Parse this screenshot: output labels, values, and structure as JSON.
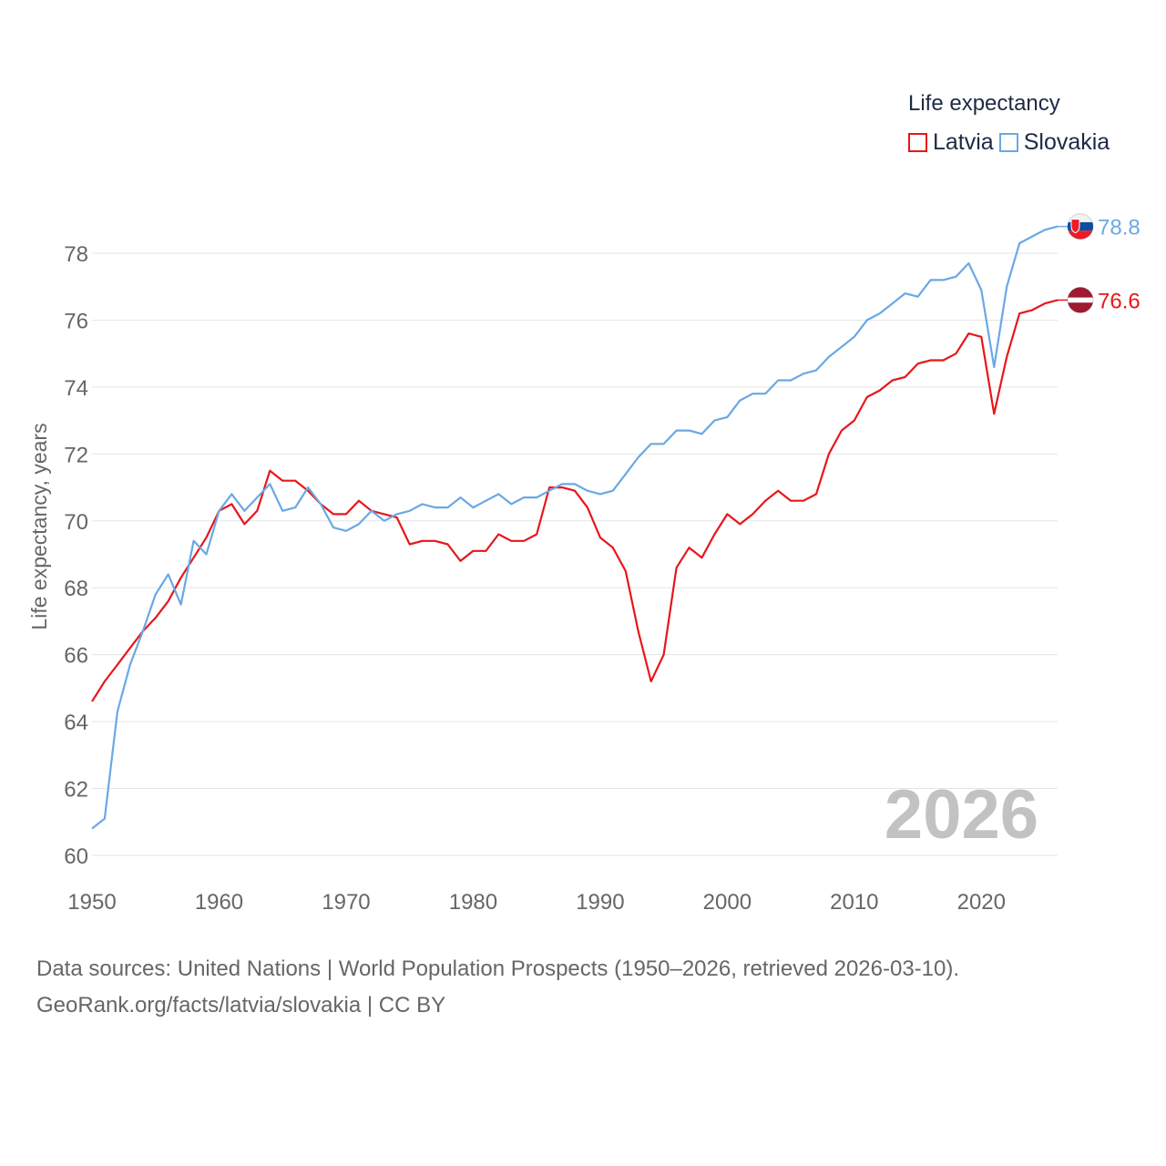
{
  "colors": {
    "latvia": "#e8161b",
    "slovakia": "#6aa8e6",
    "grid": "#e5e5e5",
    "axis_text": "#666666",
    "watermark": "#c2c2c2"
  },
  "legend": {
    "title": "Life expectancy",
    "items": [
      {
        "label": "Latvia",
        "color": "#e8161b"
      },
      {
        "label": "Slovakia",
        "color": "#6aa8e6"
      }
    ]
  },
  "source": {
    "line1": "Data sources: United Nations | World Population Prospects (1950–2026, retrieved 2026-03-10).",
    "line2": "GeoRank.org/facts/latvia/slovakia | CC BY"
  },
  "chart_data": {
    "type": "line",
    "title": "Life expectancy",
    "xlabel": "",
    "ylabel": "Life expectancy, years",
    "xlim": [
      1950,
      2026
    ],
    "ylim": [
      60,
      79.2
    ],
    "x_ticks": [
      "1950",
      "1960",
      "1970",
      "1980",
      "1990",
      "2000",
      "2010",
      "2020"
    ],
    "y_ticks": [
      "60",
      "62",
      "64",
      "66",
      "68",
      "70",
      "72",
      "74",
      "76",
      "78"
    ],
    "year_watermark": "2026",
    "grid": true,
    "legend_position": "top-right",
    "x": [
      1950,
      1951,
      1952,
      1953,
      1954,
      1955,
      1956,
      1957,
      1958,
      1959,
      1960,
      1961,
      1962,
      1963,
      1964,
      1965,
      1966,
      1967,
      1968,
      1969,
      1970,
      1971,
      1972,
      1973,
      1974,
      1975,
      1976,
      1977,
      1978,
      1979,
      1980,
      1981,
      1982,
      1983,
      1984,
      1985,
      1986,
      1987,
      1988,
      1989,
      1990,
      1991,
      1992,
      1993,
      1994,
      1995,
      1996,
      1997,
      1998,
      1999,
      2000,
      2001,
      2002,
      2003,
      2004,
      2005,
      2006,
      2007,
      2008,
      2009,
      2010,
      2011,
      2012,
      2013,
      2014,
      2015,
      2016,
      2017,
      2018,
      2019,
      2020,
      2021,
      2022,
      2023,
      2024,
      2025,
      2026
    ],
    "series": [
      {
        "name": "Latvia",
        "end_label": "76.6",
        "values": [
          64.6,
          65.2,
          65.7,
          66.2,
          66.7,
          67.1,
          67.6,
          68.3,
          68.9,
          69.5,
          70.3,
          70.5,
          69.9,
          70.3,
          71.5,
          71.2,
          71.2,
          70.9,
          70.5,
          70.2,
          70.2,
          70.6,
          70.3,
          70.2,
          70.1,
          69.3,
          69.4,
          69.4,
          69.3,
          68.8,
          69.1,
          69.1,
          69.6,
          69.4,
          69.4,
          69.6,
          71.0,
          71.0,
          70.9,
          70.4,
          69.5,
          69.2,
          68.5,
          66.7,
          65.2,
          66.0,
          68.6,
          69.2,
          68.9,
          69.6,
          70.2,
          69.9,
          70.2,
          70.6,
          70.9,
          70.6,
          70.6,
          70.8,
          72.0,
          72.7,
          73.0,
          73.7,
          73.9,
          74.2,
          74.3,
          74.7,
          74.8,
          74.8,
          75.0,
          75.6,
          75.5,
          73.2,
          74.9,
          76.2,
          76.3,
          76.5,
          76.6
        ]
      },
      {
        "name": "Slovakia",
        "end_label": "78.8",
        "values": [
          60.8,
          61.1,
          64.3,
          65.7,
          66.7,
          67.8,
          68.4,
          67.5,
          69.4,
          69.0,
          70.3,
          70.8,
          70.3,
          70.7,
          71.1,
          70.3,
          70.4,
          71.0,
          70.5,
          69.8,
          69.7,
          69.9,
          70.3,
          70.0,
          70.2,
          70.3,
          70.5,
          70.4,
          70.4,
          70.7,
          70.4,
          70.6,
          70.8,
          70.5,
          70.7,
          70.7,
          70.9,
          71.1,
          71.1,
          70.9,
          70.8,
          70.9,
          71.4,
          71.9,
          72.3,
          72.3,
          72.7,
          72.7,
          72.6,
          73.0,
          73.1,
          73.6,
          73.8,
          73.8,
          74.2,
          74.2,
          74.4,
          74.5,
          74.9,
          75.2,
          75.5,
          76.0,
          76.2,
          76.5,
          76.8,
          76.7,
          77.2,
          77.2,
          77.3,
          77.7,
          76.9,
          74.6,
          77.0,
          78.3,
          78.5,
          78.7,
          78.8
        ]
      }
    ]
  }
}
